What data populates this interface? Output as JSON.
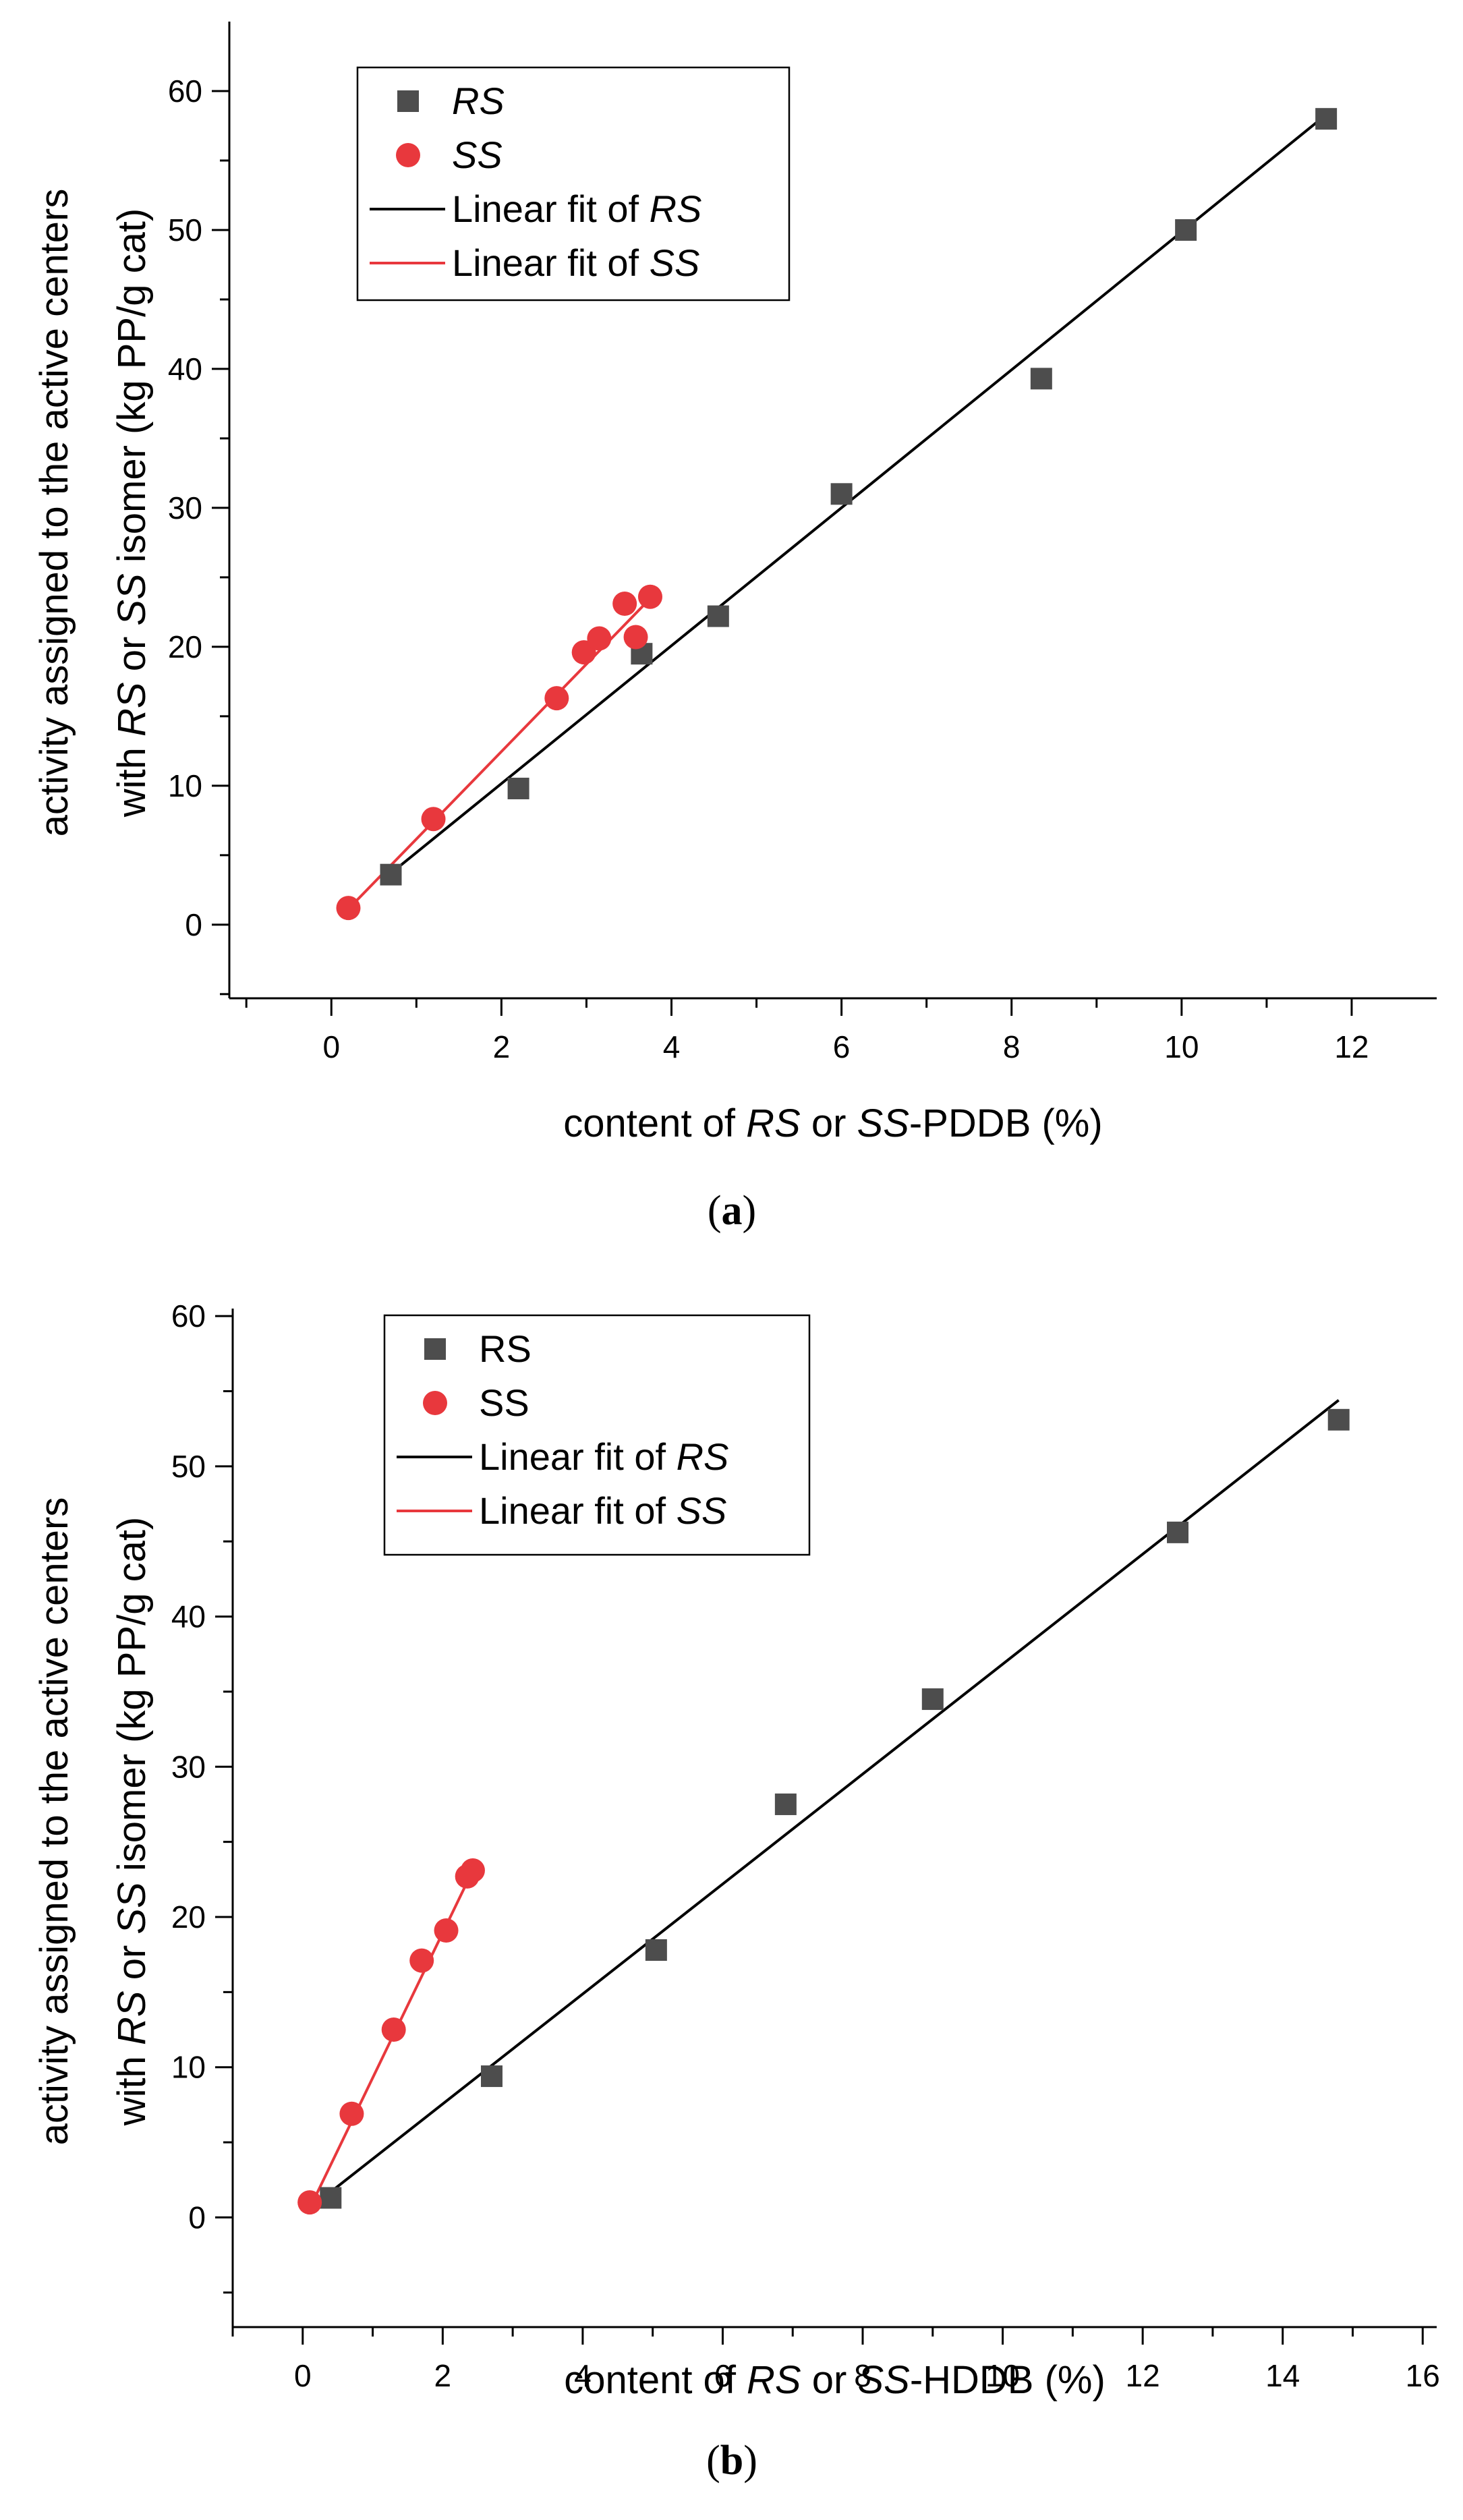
{
  "chart_data": [
    {
      "id": "a",
      "type": "scatter",
      "caption": {
        "open": "(",
        "letter": "a",
        "close": ")"
      },
      "xlabel": {
        "pre": "content of ",
        "rs": "RS",
        "mid": " or ",
        "ss": "SS",
        "post": "-PDDB (%)"
      },
      "ylabel": {
        "line1": "activity assigned to the active centers",
        "line2": {
          "pre": "with ",
          "rs": "RS",
          "mid": " or ",
          "ss": "SS",
          "post": " isomer (kg PP/g cat)"
        }
      },
      "xlim": [
        -1.2,
        13
      ],
      "ylim": [
        -5.3,
        65
      ],
      "xticks": [
        0,
        2,
        4,
        6,
        8,
        10,
        12
      ],
      "yticks": [
        0,
        10,
        20,
        30,
        40,
        50,
        60
      ],
      "legend": {
        "placement": "top-left",
        "rs_italic": true,
        "rs": "RS",
        "ss": "SS",
        "fit_rs": {
          "pre": "Linear fit of ",
          "it": "RS"
        },
        "fit_ss": {
          "pre": "Linear fit of ",
          "it": "SS"
        }
      },
      "series": [
        {
          "name": "RS",
          "marker": "square",
          "color": "#4d4d4d",
          "x": [
            0.7,
            2.2,
            3.65,
            4.55,
            6.0,
            8.35,
            10.05,
            11.7
          ],
          "y": [
            3.6,
            9.8,
            19.5,
            22.2,
            31.0,
            39.3,
            50.0,
            58.0
          ]
        },
        {
          "name": "SS",
          "marker": "circle",
          "color": "#e8383d",
          "x": [
            0.2,
            1.2,
            2.65,
            2.97,
            3.15,
            3.45,
            3.58,
            3.75
          ],
          "y": [
            1.2,
            7.6,
            16.3,
            19.6,
            20.6,
            23.1,
            20.7,
            23.6
          ]
        }
      ],
      "fits": [
        {
          "name": "Linear fit of RS",
          "color": "#000000",
          "x": [
            0.68,
            11.68
          ],
          "y": [
            3.6,
            58.2
          ]
        },
        {
          "name": "Linear fit of SS",
          "color": "#e8383d",
          "x": [
            0.18,
            3.77
          ],
          "y": [
            1.0,
            23.6
          ]
        }
      ]
    },
    {
      "id": "b",
      "type": "scatter",
      "caption": {
        "open": "(",
        "letter": "b",
        "close": ")"
      },
      "xlabel": {
        "pre": "content of ",
        "rs": "RS",
        "mid": " or ",
        "ss": "SS",
        "post": "-HDDB (%)"
      },
      "ylabel": {
        "line1": "activity assigned to the active centers",
        "line2": {
          "pre": "with ",
          "rs": "RS",
          "mid": " or ",
          "ss": "SS",
          "post": " isomer (kg PP/g cat)"
        }
      },
      "xlim": [
        -1.0,
        16.2
      ],
      "ylim": [
        -7.3,
        60.5
      ],
      "xticks": [
        0,
        2,
        4,
        6,
        8,
        10,
        12,
        14,
        16
      ],
      "yticks": [
        0,
        10,
        20,
        30,
        40,
        50,
        60
      ],
      "legend": {
        "placement": "top-left",
        "rs_italic": false,
        "rs": "RS",
        "ss": "SS",
        "fit_rs": {
          "pre": "Linear fit of ",
          "it": "RS"
        },
        "fit_ss": {
          "pre": "Linear fit of ",
          "it": "SS"
        }
      },
      "series": [
        {
          "name": "RS",
          "marker": "square",
          "color": "#4d4d4d",
          "x": [
            0.4,
            2.7,
            5.05,
            6.9,
            9.0,
            12.5,
            14.8
          ],
          "y": [
            1.3,
            9.4,
            17.8,
            27.5,
            34.5,
            45.6,
            53.1
          ]
        },
        {
          "name": "SS",
          "marker": "circle",
          "color": "#e8383d",
          "x": [
            0.1,
            0.7,
            1.3,
            1.7,
            2.05,
            2.35,
            2.43
          ],
          "y": [
            1.0,
            6.9,
            12.5,
            17.1,
            19.1,
            22.7,
            23.1
          ]
        }
      ],
      "fits": [
        {
          "name": "Linear fit of RS",
          "color": "#000000",
          "x": [
            0.1,
            14.8
          ],
          "y": [
            0.6,
            54.4
          ]
        },
        {
          "name": "Linear fit of SS",
          "color": "#e8383d",
          "x": [
            0.1,
            2.43
          ],
          "y": [
            0.6,
            23.1
          ]
        }
      ]
    }
  ]
}
